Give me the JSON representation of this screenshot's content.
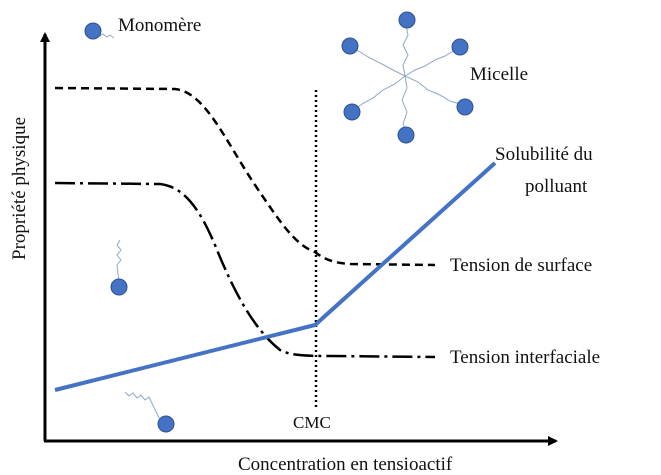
{
  "labels": {
    "monomer": "Monomère",
    "micelle": "Micelle",
    "y_axis": "Propriété physique",
    "x_axis": "Concentration en tensioactif",
    "solubility": [
      "Solubilité du",
      "polluant"
    ],
    "surface_tension": "Tension de surface",
    "interfacial_tension": "Tension interfaciale",
    "cmc": "CMC"
  }
}
